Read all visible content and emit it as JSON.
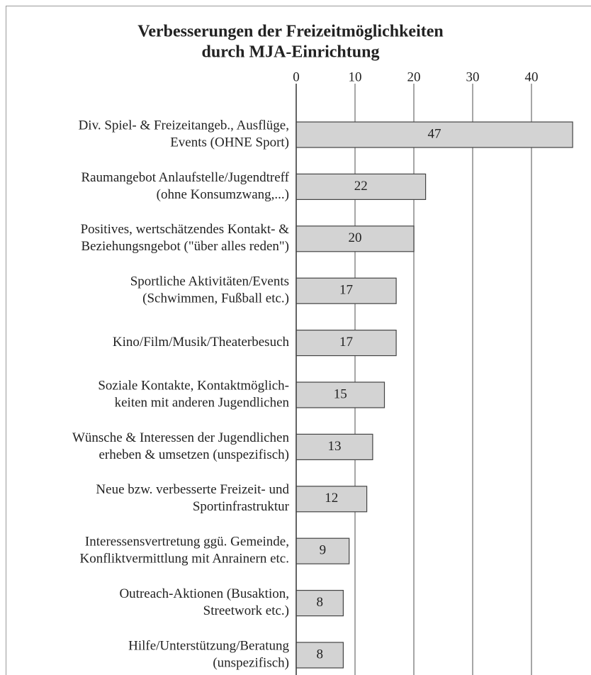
{
  "chart_data": {
    "type": "bar",
    "orientation": "horizontal",
    "title": [
      "Verbesserungen der Freizeitmöglichkeiten",
      "durch MJA-Einrichtung"
    ],
    "categories": [
      [
        "Div.  Spiel- & Freizeitangeb., Ausflüge,",
        "Events (OHNE Sport)"
      ],
      [
        "Raumangebot Anlaufstelle/Jugendtreff",
        "(ohne Konsumzwang,...)"
      ],
      [
        "Positives, wertschätzendes Kontakt- &",
        "Beziehungsngebot (\"über alles reden\")"
      ],
      [
        "Sportliche Aktivitäten/Events",
        "(Schwimmen, Fußball etc.)"
      ],
      [
        "Kino/Film/Musik/Theaterbesuch"
      ],
      [
        "Soziale Kontakte, Kontaktmöglich-",
        "keiten mit anderen Jugendlichen"
      ],
      [
        "Wünsche & Interessen der Jugendlichen",
        "erheben & umsetzen (unspezifisch)"
      ],
      [
        "Neue bzw. verbesserte Freizeit- und",
        "Sportinfrastruktur"
      ],
      [
        "Interessensvertretung ggü. Gemeinde,",
        "Konfliktvermittlung mit Anrainern etc."
      ],
      [
        "Outreach-Aktionen (Busaktion,",
        "Streetwork etc.)"
      ],
      [
        "Hilfe/Unterstützung/Beratung",
        "(unspezifisch)"
      ]
    ],
    "values": [
      47,
      22,
      20,
      17,
      17,
      15,
      13,
      12,
      9,
      8,
      8
    ],
    "color": "#d3d3d3",
    "xlim": [
      0,
      50
    ],
    "xticks": [
      0,
      10,
      20,
      30,
      40
    ],
    "grid": true
  }
}
